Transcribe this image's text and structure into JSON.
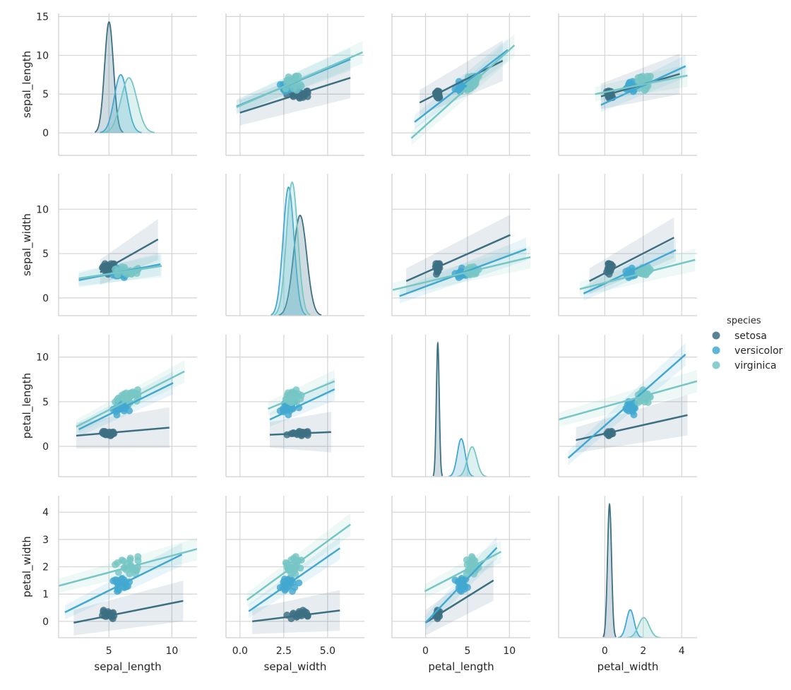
{
  "colors": {
    "setosa": "#3d6f83",
    "versicolor": "#43a8d1",
    "virginica": "#76c6c5",
    "grid": "#d4d4d4",
    "spine": "#cfcfcf"
  },
  "chart_data": {
    "type": "scatter",
    "title": "",
    "variables": [
      "sepal_length",
      "sepal_width",
      "petal_length",
      "petal_width"
    ],
    "legend": {
      "title": "species",
      "placement": "right",
      "entries": [
        "setosa",
        "versicolor",
        "virginica"
      ]
    },
    "grid": true,
    "axes": {
      "sepal_length": {
        "range": [
          1,
          12
        ],
        "ticks": [
          5,
          10
        ],
        "tick_labels": [
          "5",
          "10"
        ]
      },
      "sepal_width": {
        "range": [
          -0.8,
          7.1
        ],
        "ticks": [
          0,
          2.5,
          5
        ],
        "tick_labels": [
          "0.0",
          "2.5",
          "5.0"
        ]
      },
      "petal_length": {
        "range": [
          -4,
          12.5
        ],
        "ticks": [
          0,
          5,
          10
        ],
        "tick_labels": [
          "0",
          "5",
          "10"
        ]
      },
      "petal_width": {
        "range": [
          -2.4,
          4.8
        ],
        "ticks": [
          0,
          2,
          4
        ],
        "tick_labels": [
          "0",
          "2",
          "4"
        ]
      }
    },
    "row_axes": {
      "sepal_length": {
        "range": [
          -2.9,
          15.4
        ],
        "ticks": [
          0,
          5,
          10,
          15
        ],
        "tick_labels": [
          "0",
          "5",
          "10",
          "15"
        ]
      },
      "sepal_width": {
        "range": [
          -2.0,
          14.0
        ],
        "ticks": [
          0,
          5,
          10
        ],
        "tick_labels": [
          "0",
          "5",
          "10"
        ]
      },
      "petal_length": {
        "range": [
          -3.4,
          12.5
        ],
        "ticks": [
          0,
          5,
          10
        ],
        "tick_labels": [
          "0",
          "5",
          "10"
        ]
      },
      "petal_width": {
        "range": [
          -0.6,
          4.6
        ],
        "ticks": [
          0,
          1,
          2,
          3,
          4
        ],
        "tick_labels": [
          "0",
          "1",
          "2",
          "3",
          "4"
        ]
      }
    },
    "species_stats": {
      "setosa": {
        "sepal_length": [
          5.006,
          0.352
        ],
        "sepal_width": [
          3.428,
          0.379
        ],
        "petal_length": [
          1.462,
          0.174
        ],
        "petal_width": [
          0.246,
          0.105
        ]
      },
      "versicolor": {
        "sepal_length": [
          5.936,
          0.516
        ],
        "sepal_width": [
          2.77,
          0.314
        ],
        "petal_length": [
          4.26,
          0.47
        ],
        "petal_width": [
          1.326,
          0.198
        ]
      },
      "virginica": {
        "sepal_length": [
          6.588,
          0.636
        ],
        "sepal_width": [
          2.974,
          0.322
        ],
        "petal_length": [
          5.552,
          0.552
        ],
        "petal_width": [
          2.026,
          0.275
        ]
      }
    },
    "diagonal_peaks": {
      "sepal_length": {
        "setosa": 14.3,
        "versicolor": 7.5,
        "virginica": 7.1
      },
      "sepal_width": {
        "setosa": 10.0,
        "versicolor": 12.8,
        "virginica": 13.3
      },
      "petal_length": {
        "setosa": 11.6,
        "versicolor": 3.3,
        "virginica": 2.6
      },
      "petal_width": {
        "setosa": 4.3,
        "versicolor": 0.9,
        "virginica": 0.65
      }
    },
    "regressions": [
      {
        "x": "sepal_width",
        "y": "sepal_length",
        "setosa": [
          [
            0.0,
            2.6
          ],
          [
            6.3,
            7.1
          ]
        ],
        "versicolor": [
          [
            -0.2,
            3.4
          ],
          [
            6.3,
            9.5
          ]
        ],
        "virginica": [
          [
            -0.2,
            3.3
          ],
          [
            7.0,
            10.4
          ]
        ]
      },
      {
        "x": "petal_length",
        "y": "sepal_length",
        "setosa": [
          [
            -0.7,
            3.9
          ],
          [
            9.2,
            9.3
          ]
        ],
        "versicolor": [
          [
            -1.3,
            1.4
          ],
          [
            9.8,
            10.7
          ]
        ],
        "virginica": [
          [
            -1.7,
            -0.7
          ],
          [
            10.6,
            11.3
          ]
        ]
      },
      {
        "x": "petal_width",
        "y": "sepal_length",
        "setosa": [
          [
            -0.2,
            4.7
          ],
          [
            3.9,
            7.6
          ]
        ],
        "versicolor": [
          [
            -0.2,
            3.6
          ],
          [
            4.2,
            8.6
          ]
        ],
        "virginica": [
          [
            -0.5,
            5.0
          ],
          [
            4.3,
            7.4
          ]
        ]
      },
      {
        "x": "sepal_length",
        "y": "sepal_width",
        "setosa": [
          [
            4.3,
            2.9
          ],
          [
            8.9,
            6.6
          ]
        ],
        "versicolor": [
          [
            2.6,
            2.0
          ],
          [
            9.1,
            3.8
          ]
        ],
        "virginica": [
          [
            2.6,
            2.2
          ],
          [
            9.2,
            3.6
          ]
        ]
      },
      {
        "x": "petal_length",
        "y": "sepal_width",
        "setosa": [
          [
            -2.3,
            1.9
          ],
          [
            10.1,
            7.1
          ]
        ],
        "versicolor": [
          [
            -3.1,
            0.2
          ],
          [
            12.0,
            5.5
          ]
        ],
        "virginica": [
          [
            -3.9,
            0.9
          ],
          [
            12.5,
            4.6
          ]
        ]
      },
      {
        "x": "petal_width",
        "y": "sepal_width",
        "setosa": [
          [
            -0.8,
            1.9
          ],
          [
            3.6,
            6.8
          ]
        ],
        "versicolor": [
          [
            -1.1,
            0.5
          ],
          [
            3.7,
            5.4
          ]
        ],
        "virginica": [
          [
            -1.3,
            1.0
          ],
          [
            4.7,
            4.3
          ]
        ]
      },
      {
        "x": "sepal_length",
        "y": "petal_length",
        "setosa": [
          [
            2.4,
            1.2
          ],
          [
            9.8,
            2.1
          ]
        ],
        "versicolor": [
          [
            2.6,
            1.9
          ],
          [
            10.1,
            7.1
          ]
        ],
        "virginica": [
          [
            2.4,
            2.2
          ],
          [
            11.0,
            8.4
          ]
        ]
      },
      {
        "x": "sepal_width",
        "y": "petal_length",
        "setosa": [
          [
            1.7,
            1.3
          ],
          [
            5.2,
            1.6
          ]
        ],
        "versicolor": [
          [
            1.7,
            3.0
          ],
          [
            5.4,
            6.4
          ]
        ],
        "virginica": [
          [
            1.6,
            4.2
          ],
          [
            5.4,
            7.3
          ]
        ]
      },
      {
        "x": "petal_width",
        "y": "petal_length",
        "setosa": [
          [
            -1.5,
            0.7
          ],
          [
            4.3,
            3.5
          ]
        ],
        "versicolor": [
          [
            -1.9,
            -1.3
          ],
          [
            4.2,
            10.3
          ]
        ],
        "virginica": [
          [
            -2.4,
            3.0
          ],
          [
            4.8,
            7.3
          ]
        ]
      },
      {
        "x": "sepal_length",
        "y": "petal_width",
        "setosa": [
          [
            2.2,
            -0.05
          ],
          [
            10.9,
            0.75
          ]
        ],
        "versicolor": [
          [
            1.5,
            0.33
          ],
          [
            10.8,
            2.45
          ]
        ],
        "virginica": [
          [
            1.0,
            1.3
          ],
          [
            12.0,
            2.65
          ]
        ]
      },
      {
        "x": "sepal_width",
        "y": "petal_width",
        "setosa": [
          [
            0.7,
            0.0
          ],
          [
            5.7,
            0.4
          ]
        ],
        "versicolor": [
          [
            0.5,
            0.37
          ],
          [
            5.7,
            2.68
          ]
        ],
        "virginica": [
          [
            0.4,
            0.78
          ],
          [
            6.3,
            3.55
          ]
        ]
      },
      {
        "x": "petal_length",
        "y": "petal_width",
        "setosa": [
          [
            0.0,
            -0.05
          ],
          [
            8.1,
            1.5
          ]
        ],
        "versicolor": [
          [
            0.0,
            -0.05
          ],
          [
            8.5,
            2.7
          ]
        ],
        "virginica": [
          [
            -0.1,
            1.1
          ],
          [
            9.0,
            2.55
          ]
        ]
      }
    ]
  }
}
